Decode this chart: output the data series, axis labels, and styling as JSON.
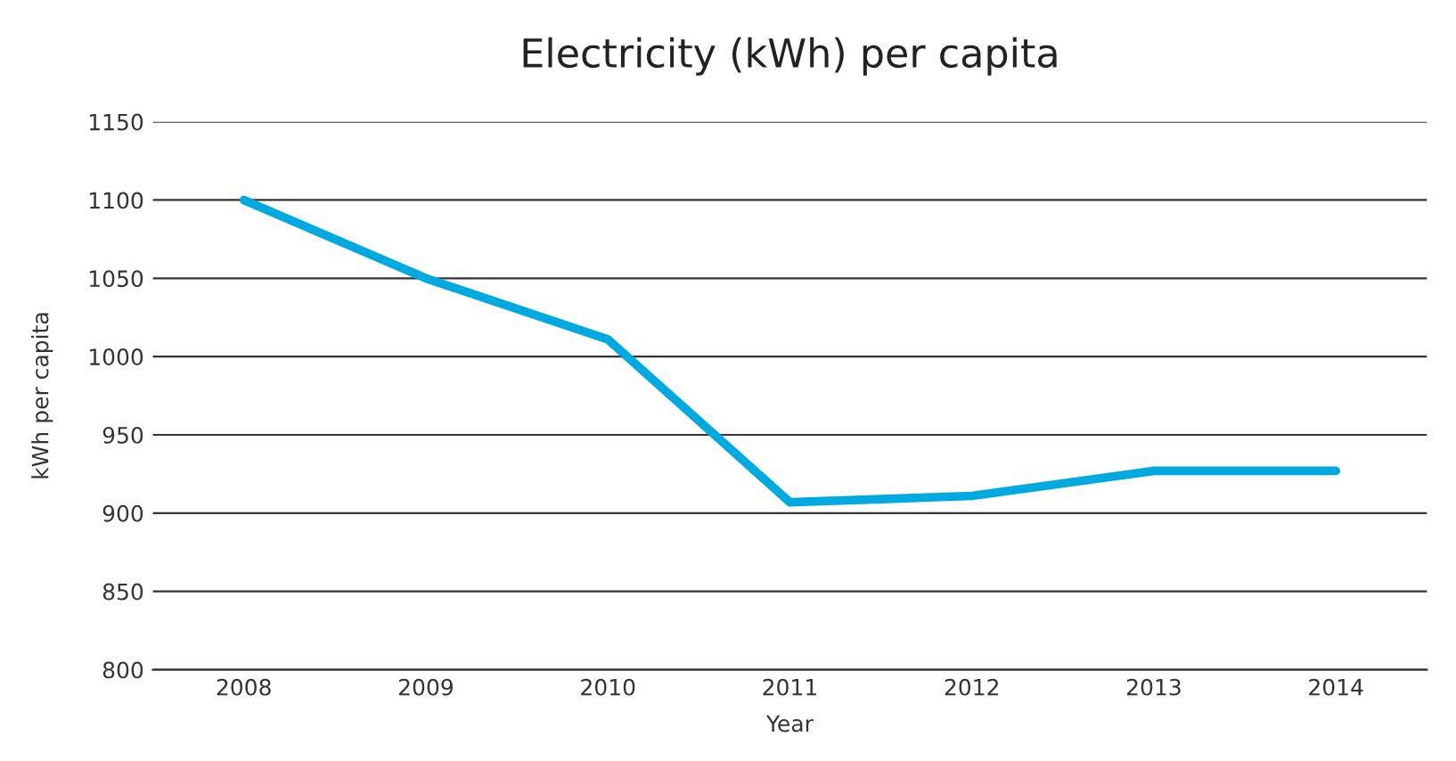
{
  "chart_data": {
    "type": "line",
    "title": "Electricity (kWh) per capita",
    "xlabel": "Year",
    "ylabel": "kWh per capita",
    "categories": [
      "2008",
      "2009",
      "2010",
      "2011",
      "2012",
      "2013",
      "2014"
    ],
    "series": [
      {
        "color": "#00a9e0",
        "values": [
          1100,
          1050,
          1011,
          907,
          911,
          927,
          927
        ]
      }
    ],
    "ylim": [
      800,
      1150
    ],
    "yticks": [
      800,
      850,
      900,
      950,
      1000,
      1050,
      1100,
      1150
    ],
    "grid": "y",
    "legend": false,
    "marker": "none",
    "line_style": "solid"
  }
}
